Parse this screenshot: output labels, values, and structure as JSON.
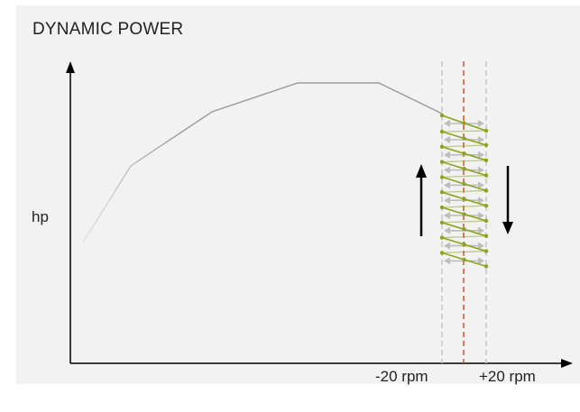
{
  "title": "DYNAMIC POWER",
  "y_axis_label": "hp",
  "x_markers": {
    "left_label": "-20 rpm",
    "right_label": "+20 rpm"
  },
  "colors": {
    "curve": "#9a9a9a",
    "center_line": "#d9531e",
    "bound_lines": "#c4c4c4",
    "zigzag": "#8aa41c",
    "arrows": "#bdbdbd",
    "axes": "#000000"
  }
}
